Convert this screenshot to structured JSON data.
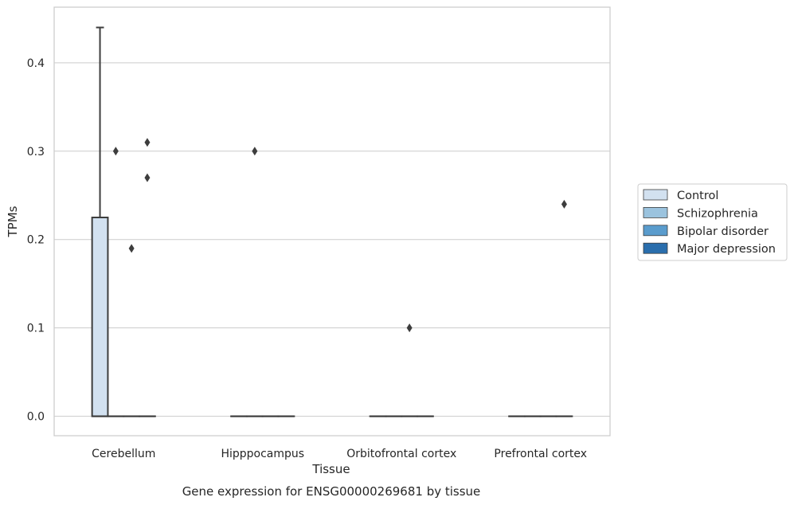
{
  "chart_data": {
    "type": "box",
    "xlabel": "Tissue",
    "ylabel": "TPMs",
    "caption": "Gene expression for ENSG00000269681 by tissue",
    "categories": [
      "Cerebellum",
      "Hipppocampus",
      "Orbitofrontal cortex",
      "Prefrontal cortex"
    ],
    "ylim": [
      -0.022,
      0.463
    ],
    "yticks": [
      0.0,
      0.1,
      0.2,
      0.3,
      0.4
    ],
    "ytick_labels": [
      "0.0",
      "0.1",
      "0.2",
      "0.3",
      "0.4"
    ],
    "grid": "horizontal",
    "legend_position": "right",
    "series": [
      {
        "name": "Control",
        "color": "#d2e1f0",
        "boxes": [
          {
            "category": "Cerebellum",
            "q1": 0.0,
            "median": 0.0,
            "q3": 0.225,
            "whisker_low": 0.0,
            "whisker_high": 0.44,
            "outliers": []
          },
          {
            "category": "Hipppocampus",
            "q1": 0.0,
            "median": 0.0,
            "q3": 0.0,
            "whisker_low": 0.0,
            "whisker_high": 0.0,
            "outliers": []
          },
          {
            "category": "Orbitofrontal cortex",
            "q1": 0.0,
            "median": 0.0,
            "q3": 0.0,
            "whisker_low": 0.0,
            "whisker_high": 0.0,
            "outliers": []
          },
          {
            "category": "Prefrontal cortex",
            "q1": 0.0,
            "median": 0.0,
            "q3": 0.0,
            "whisker_low": 0.0,
            "whisker_high": 0.0,
            "outliers": []
          }
        ]
      },
      {
        "name": "Schizophrenia",
        "color": "#9bc3de",
        "boxes": [
          {
            "category": "Cerebellum",
            "q1": 0.0,
            "median": 0.0,
            "q3": 0.0,
            "whisker_low": 0.0,
            "whisker_high": 0.0,
            "outliers": [
              0.3
            ]
          },
          {
            "category": "Hipppocampus",
            "q1": 0.0,
            "median": 0.0,
            "q3": 0.0,
            "whisker_low": 0.0,
            "whisker_high": 0.0,
            "outliers": [
              0.3
            ]
          },
          {
            "category": "Orbitofrontal cortex",
            "q1": 0.0,
            "median": 0.0,
            "q3": 0.0,
            "whisker_low": 0.0,
            "whisker_high": 0.0,
            "outliers": []
          },
          {
            "category": "Prefrontal cortex",
            "q1": 0.0,
            "median": 0.0,
            "q3": 0.0,
            "whisker_low": 0.0,
            "whisker_high": 0.0,
            "outliers": []
          }
        ]
      },
      {
        "name": "Bipolar disorder",
        "color": "#5a9ccd",
        "boxes": [
          {
            "category": "Cerebellum",
            "q1": 0.0,
            "median": 0.0,
            "q3": 0.0,
            "whisker_low": 0.0,
            "whisker_high": 0.0,
            "outliers": [
              0.19
            ]
          },
          {
            "category": "Hipppocampus",
            "q1": 0.0,
            "median": 0.0,
            "q3": 0.0,
            "whisker_low": 0.0,
            "whisker_high": 0.0,
            "outliers": []
          },
          {
            "category": "Orbitofrontal cortex",
            "q1": 0.0,
            "median": 0.0,
            "q3": 0.0,
            "whisker_low": 0.0,
            "whisker_high": 0.0,
            "outliers": [
              0.1
            ]
          },
          {
            "category": "Prefrontal cortex",
            "q1": 0.0,
            "median": 0.0,
            "q3": 0.0,
            "whisker_low": 0.0,
            "whisker_high": 0.0,
            "outliers": []
          }
        ]
      },
      {
        "name": "Major depression",
        "color": "#2a6ead",
        "boxes": [
          {
            "category": "Cerebellum",
            "q1": 0.0,
            "median": 0.0,
            "q3": 0.0,
            "whisker_low": 0.0,
            "whisker_high": 0.0,
            "outliers": [
              0.31,
              0.27
            ]
          },
          {
            "category": "Hipppocampus",
            "q1": 0.0,
            "median": 0.0,
            "q3": 0.0,
            "whisker_low": 0.0,
            "whisker_high": 0.0,
            "outliers": []
          },
          {
            "category": "Orbitofrontal cortex",
            "q1": 0.0,
            "median": 0.0,
            "q3": 0.0,
            "whisker_low": 0.0,
            "whisker_high": 0.0,
            "outliers": []
          },
          {
            "category": "Prefrontal cortex",
            "q1": 0.0,
            "median": 0.0,
            "q3": 0.0,
            "whisker_low": 0.0,
            "whisker_high": 0.0,
            "outliers": [
              0.24
            ]
          }
        ]
      }
    ],
    "colors": {
      "grid": "#cccccc",
      "frame": "#cccccc",
      "box_edge": "#3d3d3d",
      "outlier": "#3d3d3d"
    }
  }
}
